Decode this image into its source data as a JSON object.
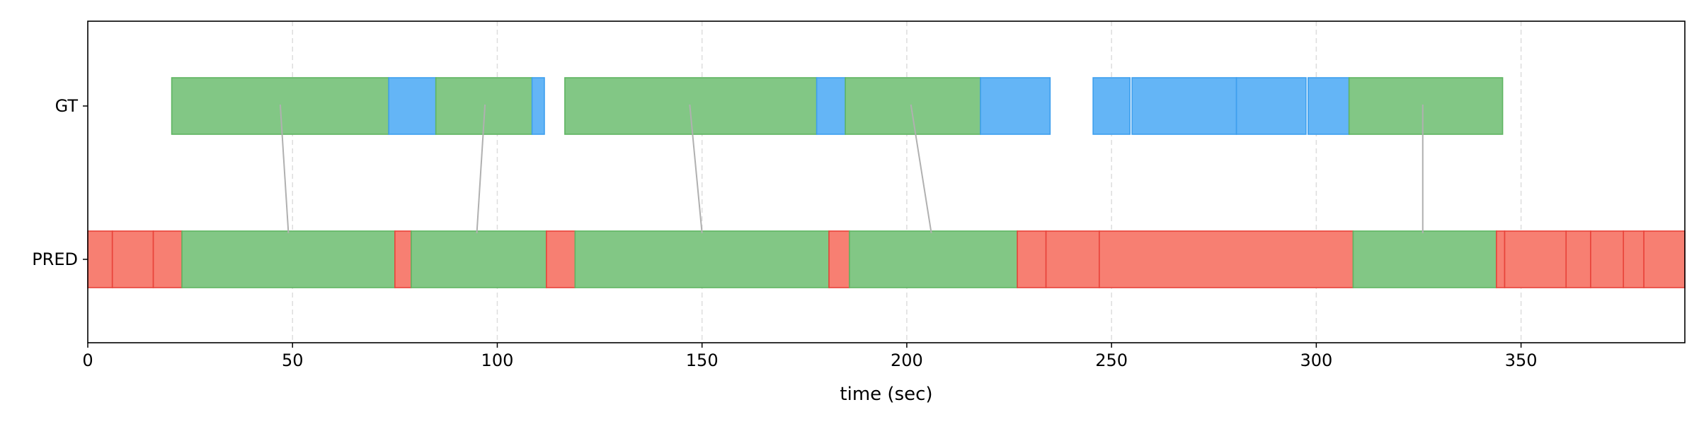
{
  "chart_data": {
    "type": "timeline",
    "xlabel": "time (sec)",
    "xlim": [
      0,
      390
    ],
    "x_ticks": [
      0,
      50,
      100,
      150,
      200,
      250,
      300,
      350
    ],
    "rows": [
      "GT",
      "PRED"
    ],
    "grid": "vertical dashed",
    "colors": {
      "green_fill": "#82c785",
      "green_edge": "#5fb562",
      "blue_fill": "#64b5f6",
      "blue_edge": "#3e9fee",
      "red_fill": "#f77f72",
      "red_edge": "#e8433a",
      "match_line": "#b0b0b0",
      "grid": "#dddddd"
    },
    "gt_segments": [
      {
        "start": 20.5,
        "end": 73.5,
        "color": "green"
      },
      {
        "start": 73.5,
        "end": 85.0,
        "color": "blue"
      },
      {
        "start": 85.0,
        "end": 108.5,
        "color": "green"
      },
      {
        "start": 108.5,
        "end": 111.5,
        "color": "blue"
      },
      {
        "start": 116.5,
        "end": 178.0,
        "color": "green"
      },
      {
        "start": 178.0,
        "end": 185.0,
        "color": "blue"
      },
      {
        "start": 185.0,
        "end": 218.0,
        "color": "green"
      },
      {
        "start": 218.0,
        "end": 235.0,
        "color": "blue"
      },
      {
        "start": 245.5,
        "end": 254.5,
        "color": "blue"
      },
      {
        "start": 255.0,
        "end": 280.5,
        "color": "blue"
      },
      {
        "start": 280.5,
        "end": 297.5,
        "color": "blue"
      },
      {
        "start": 298.0,
        "end": 308.0,
        "color": "blue"
      },
      {
        "start": 308.0,
        "end": 345.5,
        "color": "green"
      }
    ],
    "pred_segments": [
      {
        "start": 0,
        "end": 6,
        "color": "red"
      },
      {
        "start": 6,
        "end": 16,
        "color": "red"
      },
      {
        "start": 16,
        "end": 23,
        "color": "red"
      },
      {
        "start": 23,
        "end": 75,
        "color": "green"
      },
      {
        "start": 75,
        "end": 79,
        "color": "red"
      },
      {
        "start": 79,
        "end": 112,
        "color": "green"
      },
      {
        "start": 112,
        "end": 119,
        "color": "red"
      },
      {
        "start": 119,
        "end": 181,
        "color": "green"
      },
      {
        "start": 181,
        "end": 186,
        "color": "red"
      },
      {
        "start": 186,
        "end": 227,
        "color": "green"
      },
      {
        "start": 227,
        "end": 234,
        "color": "red"
      },
      {
        "start": 234,
        "end": 247,
        "color": "red"
      },
      {
        "start": 247,
        "end": 309,
        "color": "red"
      },
      {
        "start": 309,
        "end": 344,
        "color": "green"
      },
      {
        "start": 344,
        "end": 346,
        "color": "red"
      },
      {
        "start": 346,
        "end": 361,
        "color": "red"
      },
      {
        "start": 361,
        "end": 367,
        "color": "red"
      },
      {
        "start": 367,
        "end": 375,
        "color": "red"
      },
      {
        "start": 375,
        "end": 380,
        "color": "red"
      },
      {
        "start": 380,
        "end": 390,
        "color": "red"
      }
    ],
    "matches": [
      {
        "gt_time": 47,
        "pred_time": 49
      },
      {
        "gt_time": 97,
        "pred_time": 95
      },
      {
        "gt_time": 147,
        "pred_time": 150
      },
      {
        "gt_time": 201,
        "pred_time": 206
      },
      {
        "gt_time": 326,
        "pred_time": 326
      }
    ]
  }
}
